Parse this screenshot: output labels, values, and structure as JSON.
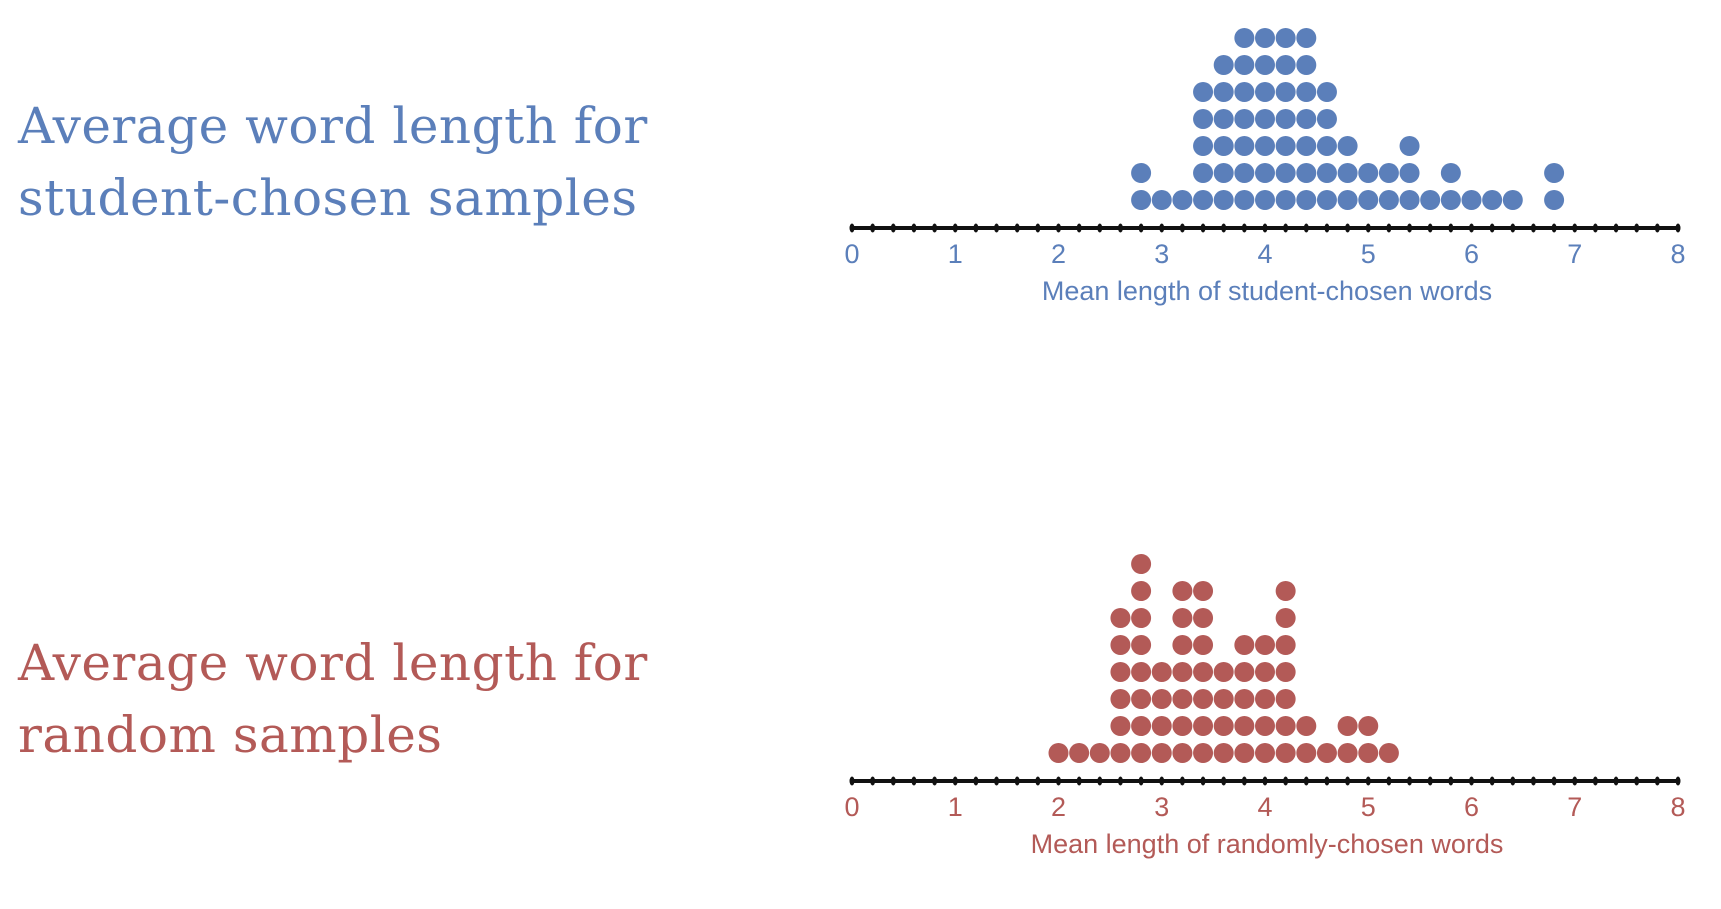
{
  "colors": {
    "blue": "#5b7fba",
    "red": "#b35a57",
    "axis": "#111111"
  },
  "panels": [
    {
      "id": "student",
      "title_lines": [
        "Average word length for",
        "student-chosen samples"
      ],
      "color": "#5b7fba",
      "axis_label": "Mean length of student-chosen words"
    },
    {
      "id": "random",
      "title_lines": [
        "Average word length for",
        "random samples"
      ],
      "color": "#b35a57",
      "axis_label": "Mean length of randomly-chosen words"
    }
  ],
  "chart_data": [
    {
      "type": "dot",
      "title": "Average word length for student-chosen samples",
      "xlabel": "Mean length of student-chosen words",
      "ylabel": "",
      "xlim": [
        0,
        8
      ],
      "x_ticks": [
        0,
        1,
        2,
        3,
        4,
        5,
        6,
        7,
        8
      ],
      "minor_tick_step": 0.2,
      "color": "#5b7fba",
      "x": [
        2.8,
        3.0,
        3.2,
        3.4,
        3.6,
        3.8,
        4.0,
        4.2,
        4.4,
        4.6,
        4.8,
        5.0,
        5.2,
        5.4,
        5.6,
        5.8,
        6.0,
        6.2,
        6.4,
        6.8
      ],
      "counts": [
        2,
        1,
        1,
        5,
        6,
        7,
        7,
        7,
        7,
        5,
        3,
        2,
        2,
        3,
        1,
        2,
        1,
        1,
        1,
        2
      ]
    },
    {
      "type": "dot",
      "title": "Average word length for random samples",
      "xlabel": "Mean length of randomly-chosen words",
      "ylabel": "",
      "xlim": [
        0,
        8
      ],
      "x_ticks": [
        0,
        1,
        2,
        3,
        4,
        5,
        6,
        7,
        8
      ],
      "minor_tick_step": 0.2,
      "color": "#b35a57",
      "x": [
        2.0,
        2.2,
        2.4,
        2.6,
        2.8,
        3.0,
        3.2,
        3.4,
        3.6,
        3.8,
        4.0,
        4.2,
        4.4,
        4.6,
        4.8,
        5.0,
        5.2
      ],
      "counts": [
        1,
        1,
        1,
        6,
        8,
        4,
        7,
        7,
        4,
        5,
        5,
        7,
        2,
        1,
        2,
        2,
        1
      ]
    }
  ]
}
